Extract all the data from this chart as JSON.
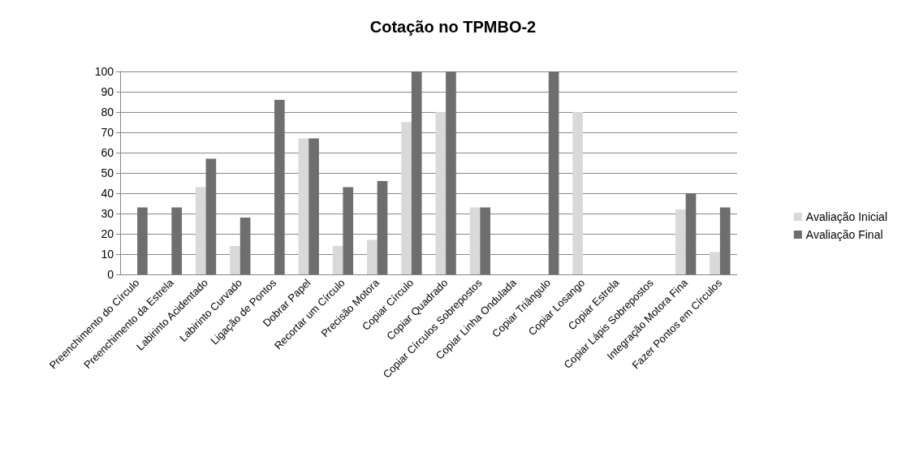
{
  "chart_data": {
    "type": "bar",
    "title": "Cotação no TPMBO-2",
    "categories": [
      "Preenchimento do Círculo",
      "Preenchimento da Estrela",
      "Labirinto Acidentado",
      "Labirinto Curvado",
      "Ligação de Pontos",
      "Dobrar Papel",
      "Recortar um Círculo",
      "Precisão Motora",
      "Copiar Círculo",
      "Copiar Quadrado",
      "Copiar Círculos Sobrepostos",
      "Copiar Linha Ondulada",
      "Copiar Triângulo",
      "Copiar Losango",
      "Copiar Estrela",
      "Copiar Lápis Sobrepostos",
      "Integração Motora Fina",
      "Fazer Pontos em Círculos"
    ],
    "series": [
      {
        "name": "Avaliação Inicial",
        "color": "#d9d9d9",
        "values": [
          0,
          0,
          43,
          14,
          0,
          67,
          14,
          17,
          75,
          80,
          33,
          0,
          0,
          80,
          0,
          0,
          32,
          11
        ]
      },
      {
        "name": "Avaliação Final",
        "color": "#6e6e6e",
        "values": [
          33,
          33,
          57,
          28,
          86,
          67,
          43,
          46,
          100,
          100,
          33,
          0,
          100,
          0,
          0,
          0,
          40,
          33
        ]
      }
    ],
    "ylim": [
      0,
      100
    ],
    "yticks": [
      0,
      10,
      20,
      30,
      40,
      50,
      60,
      70,
      80,
      90,
      100
    ],
    "grid": "y",
    "legend": "right"
  }
}
